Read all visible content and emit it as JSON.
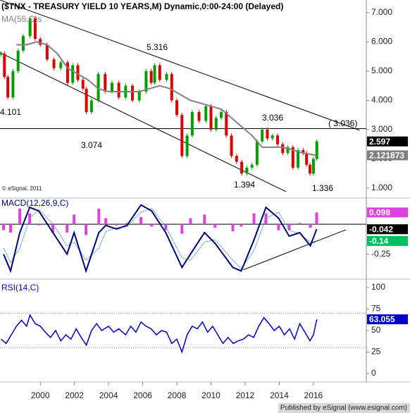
{
  "header": {
    "title": "($TNX - TREASURY YIELD 10 YEARS,M) Dynamic,0:00-24:00 (Delayed)",
    "footer": "Published by eSignal (www.esignal.com)"
  },
  "chart_data": [
    {
      "type": "candlestick",
      "name": "$TNX",
      "up_color": "#00a000",
      "down_color": "#e00000",
      "x": [
        1997.7,
        1997.9,
        1998.1,
        1998.4,
        1998.7,
        1999.0,
        1999.4,
        1999.7,
        2000.0,
        2000.4,
        2000.8,
        2001.2,
        2001.6,
        2001.9,
        2002.2,
        2002.5,
        2002.7,
        2003.0,
        2003.4,
        2003.8,
        2004.2,
        2004.6,
        2005.0,
        2005.4,
        2005.8,
        2006.2,
        2006.5,
        2006.7,
        2007.0,
        2007.4,
        2007.7,
        2008.0,
        2008.3,
        2008.6,
        2008.9,
        2009.3,
        2009.7,
        2010.0,
        2010.3,
        2010.6,
        2010.9,
        2011.2,
        2011.5,
        2011.8,
        2012.1,
        2012.4,
        2012.7,
        2013.0,
        2013.3,
        2013.6,
        2013.9,
        2014.2,
        2014.5,
        2014.8,
        2015.1,
        2015.4,
        2015.6,
        2015.8,
        2016.0,
        2016.2
      ],
      "values": [
        5.6,
        4.8,
        4.1,
        5.0,
        5.7,
        6.2,
        6.8,
        6.1,
        5.9,
        5.4,
        5.1,
        5.3,
        4.6,
        5.2,
        4.7,
        4.4,
        3.6,
        4.0,
        4.9,
        4.3,
        4.6,
        4.1,
        4.5,
        4.0,
        4.3,
        5.0,
        4.6,
        5.2,
        4.7,
        4.9,
        4.0,
        3.5,
        2.1,
        2.8,
        3.6,
        3.3,
        3.8,
        3.0,
        3.4,
        3.6,
        2.8,
        2.1,
        1.9,
        1.5,
        1.7,
        1.8,
        2.6,
        3.0,
        2.7,
        2.8,
        2.5,
        2.2,
        2.4,
        1.7,
        2.3,
        2.2,
        1.8,
        1.5,
        2.0,
        2.6
      ],
      "ma": {
        "name": "MA(55,C)s",
        "color": "#808080",
        "x": [
          1998.6,
          1999.2,
          1999.8,
          2000.4,
          2001.0,
          2001.6,
          2002.2,
          2002.8,
          2003.4,
          2004.0,
          2004.6,
          2005.2,
          2005.8,
          2006.4,
          2007.0,
          2007.6,
          2008.2,
          2008.8,
          2009.4,
          2010.0,
          2010.6,
          2011.2,
          2011.8,
          2012.4,
          2013.0,
          2013.6,
          2014.2,
          2014.8,
          2015.4,
          2016.2
        ],
        "values": [
          5.9,
          5.9,
          6.0,
          5.9,
          5.6,
          5.1,
          4.9,
          4.7,
          4.4,
          4.3,
          4.3,
          4.3,
          4.3,
          4.4,
          4.5,
          4.4,
          4.2,
          4.0,
          3.9,
          3.8,
          3.7,
          3.4,
          3.1,
          2.8,
          2.4,
          2.4,
          2.4,
          2.3,
          2.2,
          2.12
        ]
      },
      "trendlines": [
        {
          "x": [
            1997.64,
            2018.7
          ],
          "y": [
            7.43,
            2.98
          ]
        },
        {
          "x": [
            1997.64,
            2014.4
          ],
          "y": [
            5.63,
            0.88
          ]
        }
      ],
      "hline": 3.036,
      "annotations": [
        "4.101",
        "3.074",
        "5.316",
        "3.036",
        "1.394",
        "1.336",
        "( 3.036)"
      ],
      "copyright": "© eSignal, 2011",
      "ylim": [
        0.735,
        7.43
      ],
      "yticks": [
        {
          "value": 7,
          "label": "7.000"
        },
        {
          "value": 6,
          "label": "6.000"
        },
        {
          "value": 5,
          "label": "5.000"
        },
        {
          "value": 4,
          "label": "4.000"
        },
        {
          "value": 3,
          "label": "3.000"
        },
        {
          "value": 2,
          "label": "2.000"
        },
        {
          "value": 1,
          "label": "1.000"
        }
      ],
      "markers": [
        {
          "value": 2.597,
          "color": "#000000"
        },
        {
          "value": 2.121873,
          "color": "#808080"
        }
      ]
    },
    {
      "type": "macd",
      "title": "MACD(12,26,9,C)",
      "x": [
        1997.85,
        1998.26,
        1998.8,
        1999.38,
        1999.91,
        2000.74,
        2001.57,
        2001.98,
        2002.68,
        2003.43,
        2003.84,
        2004.46,
        2005.08,
        2005.9,
        2006.52,
        2007.35,
        2008.3,
        2008.8,
        2009.62,
        2010.24,
        2011.28,
        2011.77,
        2012.52,
        2013.22,
        2013.96,
        2014.58,
        2015.2,
        2015.82,
        2016.19
      ],
      "series": [
        {
          "name": "MACD",
          "color": "#000080",
          "values": [
            -0.25,
            -0.39,
            -0.07,
            0.14,
            0.11,
            -0.07,
            -0.25,
            -0.07,
            -0.39,
            -0.07,
            -0.01,
            -0.04,
            -0.01,
            0.16,
            0.11,
            -0.07,
            -0.36,
            -0.25,
            -0.07,
            -0.16,
            -0.36,
            -0.39,
            -0.13,
            0.14,
            0.05,
            -0.1,
            -0.07,
            -0.18,
            -0.042
          ]
        },
        {
          "name": "Signal",
          "color": "#2aa198",
          "values": [
            -0.2,
            -0.32,
            -0.2,
            0.05,
            0.12,
            0.0,
            -0.18,
            -0.15,
            -0.3,
            -0.2,
            -0.06,
            -0.03,
            -0.02,
            0.1,
            0.13,
            -0.02,
            -0.28,
            -0.3,
            -0.15,
            -0.13,
            -0.3,
            -0.37,
            -0.22,
            0.05,
            0.1,
            -0.05,
            -0.08,
            -0.15,
            -0.14
          ]
        },
        {
          "name": "Histogram",
          "color": "#e040e0",
          "values": [
            -0.05,
            -0.07,
            0.13,
            0.09,
            -0.01,
            -0.07,
            -0.07,
            0.08,
            -0.09,
            0.13,
            0.05,
            -0.01,
            0.01,
            0.06,
            -0.02,
            -0.05,
            -0.08,
            0.05,
            0.08,
            -0.03,
            -0.06,
            -0.02,
            0.09,
            0.09,
            -0.05,
            -0.05,
            0.01,
            -0.03,
            0.098
          ]
        }
      ],
      "trendlines": [
        {
          "x": [
            2011.9,
            2017.9
          ],
          "y": [
            -0.38,
            -0.047
          ]
        }
      ],
      "levels": [
        0
      ],
      "ylim": [
        -0.44,
        0.206
      ],
      "yticks": [
        -0.25
      ],
      "markers": [
        {
          "value": 0.098,
          "color": "#e040e0"
        },
        {
          "value": -0.042,
          "color": "#000000"
        },
        {
          "value": -0.14,
          "color": "#00c060"
        }
      ]
    },
    {
      "type": "line",
      "title": "RSI(14,C)",
      "color": "#0000cc",
      "x": [
        1997.7,
        1998.0,
        1998.3,
        1998.6,
        1998.9,
        1999.2,
        1999.4,
        1999.7,
        2000.0,
        2000.3,
        2000.6,
        2000.9,
        2001.2,
        2001.5,
        2001.8,
        2002.1,
        2002.4,
        2002.7,
        2003.0,
        2003.3,
        2003.6,
        2004.0,
        2004.3,
        2004.6,
        2005.0,
        2005.3,
        2005.6,
        2005.9,
        2006.2,
        2006.5,
        2006.8,
        2007.1,
        2007.4,
        2007.7,
        2008.0,
        2008.3,
        2008.6,
        2008.9,
        2009.2,
        2009.5,
        2009.8,
        2010.1,
        2010.4,
        2010.7,
        2011.0,
        2011.3,
        2011.6,
        2011.9,
        2012.2,
        2012.5,
        2012.8,
        2013.1,
        2013.4,
        2013.7,
        2014.0,
        2014.3,
        2014.6,
        2014.9,
        2015.2,
        2015.5,
        2015.8,
        2016.0,
        2016.2
      ],
      "values": [
        40,
        35,
        45,
        55,
        62,
        55,
        68,
        58,
        55,
        48,
        42,
        50,
        38,
        45,
        40,
        52,
        42,
        33,
        50,
        58,
        50,
        55,
        48,
        52,
        45,
        55,
        48,
        60,
        55,
        52,
        45,
        50,
        48,
        35,
        40,
        25,
        45,
        55,
        52,
        60,
        48,
        55,
        45,
        35,
        42,
        35,
        38,
        40,
        45,
        42,
        55,
        65,
        58,
        50,
        55,
        45,
        52,
        40,
        58,
        48,
        38,
        45,
        63.055
      ],
      "levels": [
        70,
        30
      ],
      "ylim": [
        -8.2,
        108.2
      ],
      "yticks": [
        100,
        75,
        50,
        25,
        0
      ],
      "markers": [
        {
          "value": 63.055,
          "color": "#0000cc"
        }
      ],
      "xlim": [
        1997.64,
        2019.1
      ],
      "xticks": [
        2000,
        2002,
        2004,
        2006,
        2008,
        2010,
        2012,
        2014,
        2016
      ]
    }
  ]
}
